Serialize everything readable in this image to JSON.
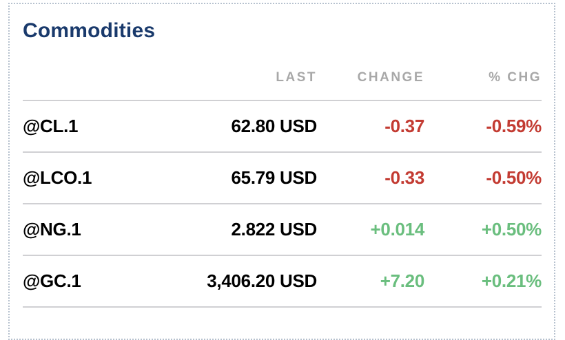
{
  "card": {
    "title": "Commodities",
    "columns": {
      "last": "LAST",
      "change": "CHANGE",
      "pct_chg": "% CHG"
    },
    "rows": [
      {
        "symbol": "@CL.1",
        "last": "62.80 USD",
        "change": "-0.37",
        "pct_chg": "-0.59%",
        "direction": "down"
      },
      {
        "symbol": "@LCO.1",
        "last": "65.79 USD",
        "change": "-0.33",
        "pct_chg": "-0.50%",
        "direction": "down"
      },
      {
        "symbol": "@NG.1",
        "last": "2.822 USD",
        "change": "+0.014",
        "pct_chg": "+0.50%",
        "direction": "up"
      },
      {
        "symbol": "@GC.1",
        "last": "3,406.20 USD",
        "change": "+7.20",
        "pct_chg": "+0.21%",
        "direction": "up"
      }
    ],
    "colors": {
      "title": "#1a3a6c",
      "header_text": "#a8a8a8",
      "loss": "#c33b32",
      "gain": "#6abe7e",
      "separator": "#d0d0d3",
      "card_border": "#b6c1ce"
    }
  }
}
